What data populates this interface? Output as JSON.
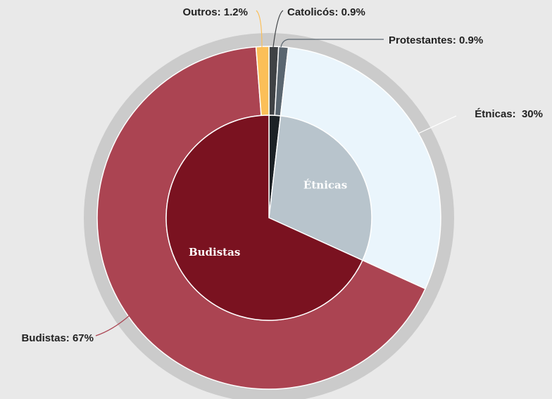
{
  "chart_data": {
    "type": "nested-pie",
    "rings": [
      {
        "values": [
          1.8,
          30,
          68.2
        ],
        "categories": [
          null,
          "Étnicas",
          "Budistas"
        ],
        "colors": [
          "#1c2226",
          "#b8c4cc",
          "#7a1220"
        ]
      },
      {
        "values": [
          0.9,
          0.9,
          30,
          67,
          1.2
        ],
        "value_labels": [
          "Catolicós: 0.9%",
          "Protestantes: 0.9%",
          "Étnicas:  30%",
          "Budistas: 67%",
          "Outros: 1.2%"
        ],
        "colors": [
          "#3f4245",
          "#5a6670",
          "#eaf5fc",
          "#ab4452",
          "#fbbf58"
        ]
      }
    ]
  }
}
